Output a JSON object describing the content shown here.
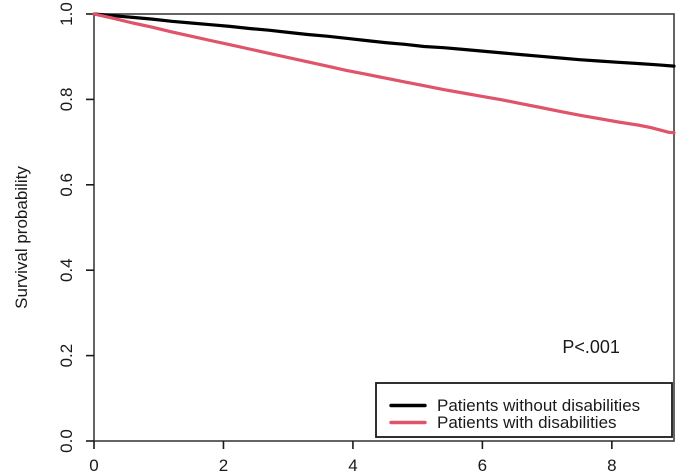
{
  "figure": {
    "background_color": "#ffffff",
    "frame_color": "#3d3d3d"
  },
  "chart_data": {
    "type": "line",
    "subtype": "kaplan-meier-survival",
    "title": "",
    "xlabel": "",
    "ylabel": "Survival probability",
    "xlim": [
      0,
      8.96
    ],
    "ylim": [
      0.0,
      1.0
    ],
    "x_ticks": [
      {
        "value": 0,
        "label": "0"
      },
      {
        "value": 2,
        "label": "2"
      },
      {
        "value": 4,
        "label": "4"
      },
      {
        "value": 6,
        "label": "6"
      },
      {
        "value": 8,
        "label": "8"
      }
    ],
    "y_ticks": [
      {
        "value": 0.0,
        "label": "0.0"
      },
      {
        "value": 0.2,
        "label": "0.2"
      },
      {
        "value": 0.4,
        "label": "0.4"
      },
      {
        "value": 0.6,
        "label": "0.6"
      },
      {
        "value": 0.8,
        "label": "0.8"
      },
      {
        "value": 1.0,
        "label": "1.0"
      }
    ],
    "grid": false,
    "legend_position": "bottom-right",
    "legend_border": true,
    "annotation": {
      "text": "P<.001",
      "x": 7.68,
      "y": 0.22
    },
    "series": [
      {
        "name": "Patients without disabilities",
        "color": "#000000",
        "line_width": 3.2,
        "points": [
          [
            0,
            1.0
          ],
          [
            0.3,
            0.996
          ],
          [
            0.6,
            0.992
          ],
          [
            0.9,
            0.988
          ],
          [
            1.2,
            0.983
          ],
          [
            1.5,
            0.979
          ],
          [
            1.8,
            0.975
          ],
          [
            2.1,
            0.971
          ],
          [
            2.4,
            0.966
          ],
          [
            2.7,
            0.962
          ],
          [
            3.0,
            0.957
          ],
          [
            3.3,
            0.952
          ],
          [
            3.6,
            0.948
          ],
          [
            3.9,
            0.943
          ],
          [
            4.2,
            0.938
          ],
          [
            4.5,
            0.933
          ],
          [
            4.8,
            0.929
          ],
          [
            5.1,
            0.924
          ],
          [
            5.4,
            0.921
          ],
          [
            5.7,
            0.917
          ],
          [
            6.0,
            0.913
          ],
          [
            6.3,
            0.909
          ],
          [
            6.6,
            0.905
          ],
          [
            6.9,
            0.901
          ],
          [
            7.2,
            0.897
          ],
          [
            7.5,
            0.893
          ],
          [
            7.8,
            0.89
          ],
          [
            8.1,
            0.887
          ],
          [
            8.4,
            0.884
          ],
          [
            8.7,
            0.881
          ],
          [
            8.96,
            0.878
          ]
        ]
      },
      {
        "name": "Patients with disabilities",
        "color": "#DF536B",
        "line_width": 3.2,
        "points": [
          [
            0,
            1.0
          ],
          [
            0.3,
            0.99
          ],
          [
            0.6,
            0.979
          ],
          [
            0.9,
            0.969
          ],
          [
            1.2,
            0.958
          ],
          [
            1.5,
            0.948
          ],
          [
            1.8,
            0.938
          ],
          [
            2.1,
            0.928
          ],
          [
            2.4,
            0.918
          ],
          [
            2.7,
            0.908
          ],
          [
            3.0,
            0.898
          ],
          [
            3.3,
            0.888
          ],
          [
            3.6,
            0.878
          ],
          [
            3.9,
            0.868
          ],
          [
            4.2,
            0.859
          ],
          [
            4.5,
            0.85
          ],
          [
            4.8,
            0.841
          ],
          [
            5.1,
            0.832
          ],
          [
            5.4,
            0.823
          ],
          [
            5.7,
            0.815
          ],
          [
            6.0,
            0.807
          ],
          [
            6.3,
            0.799
          ],
          [
            6.6,
            0.79
          ],
          [
            6.9,
            0.781
          ],
          [
            7.2,
            0.772
          ],
          [
            7.5,
            0.763
          ],
          [
            7.8,
            0.755
          ],
          [
            8.1,
            0.747
          ],
          [
            8.4,
            0.74
          ],
          [
            8.6,
            0.734
          ],
          [
            8.75,
            0.728
          ],
          [
            8.88,
            0.723
          ],
          [
            8.96,
            0.722
          ]
        ]
      }
    ]
  }
}
